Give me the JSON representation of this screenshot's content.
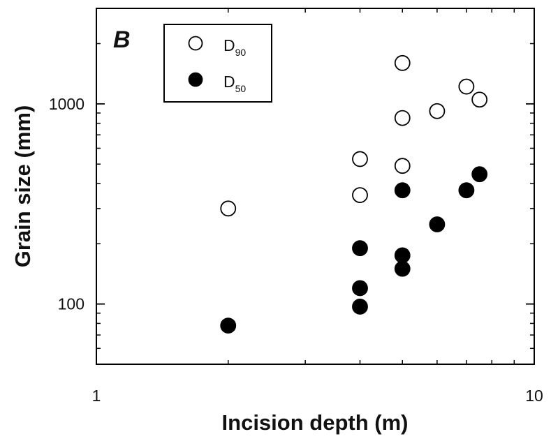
{
  "chart_data": {
    "type": "scatter",
    "panel_label": "B",
    "title": "",
    "xlabel": "Incision depth (m)",
    "ylabel": "Grain size (mm)",
    "xscale": "log",
    "yscale": "log",
    "xlim": [
      1,
      10
    ],
    "ylim": [
      50,
      3000
    ],
    "x_ticks": [
      {
        "value": 1,
        "label": "1"
      },
      {
        "value": 10,
        "label": "10"
      }
    ],
    "y_ticks": [
      {
        "value": 100,
        "label": "100"
      },
      {
        "value": 1000,
        "label": "1000"
      }
    ],
    "grid": false,
    "legend_position": "top-left",
    "series": [
      {
        "name": "D90",
        "name_main": "D",
        "name_sub": "90",
        "marker": "open-circle",
        "color": "#000000",
        "points": [
          {
            "x": 2,
            "y": 300
          },
          {
            "x": 4,
            "y": 530
          },
          {
            "x": 4,
            "y": 350
          },
          {
            "x": 5,
            "y": 1600
          },
          {
            "x": 5,
            "y": 850
          },
          {
            "x": 5,
            "y": 490
          },
          {
            "x": 6,
            "y": 920
          },
          {
            "x": 7,
            "y": 1220
          },
          {
            "x": 7.5,
            "y": 1050
          }
        ]
      },
      {
        "name": "D50",
        "name_main": "D",
        "name_sub": "50",
        "marker": "filled-circle",
        "color": "#000000",
        "points": [
          {
            "x": 2,
            "y": 78
          },
          {
            "x": 4,
            "y": 190
          },
          {
            "x": 4,
            "y": 120
          },
          {
            "x": 4,
            "y": 97
          },
          {
            "x": 5,
            "y": 370
          },
          {
            "x": 5,
            "y": 175
          },
          {
            "x": 5,
            "y": 150
          },
          {
            "x": 6,
            "y": 250
          },
          {
            "x": 7,
            "y": 370
          },
          {
            "x": 7.5,
            "y": 445
          }
        ]
      }
    ]
  }
}
